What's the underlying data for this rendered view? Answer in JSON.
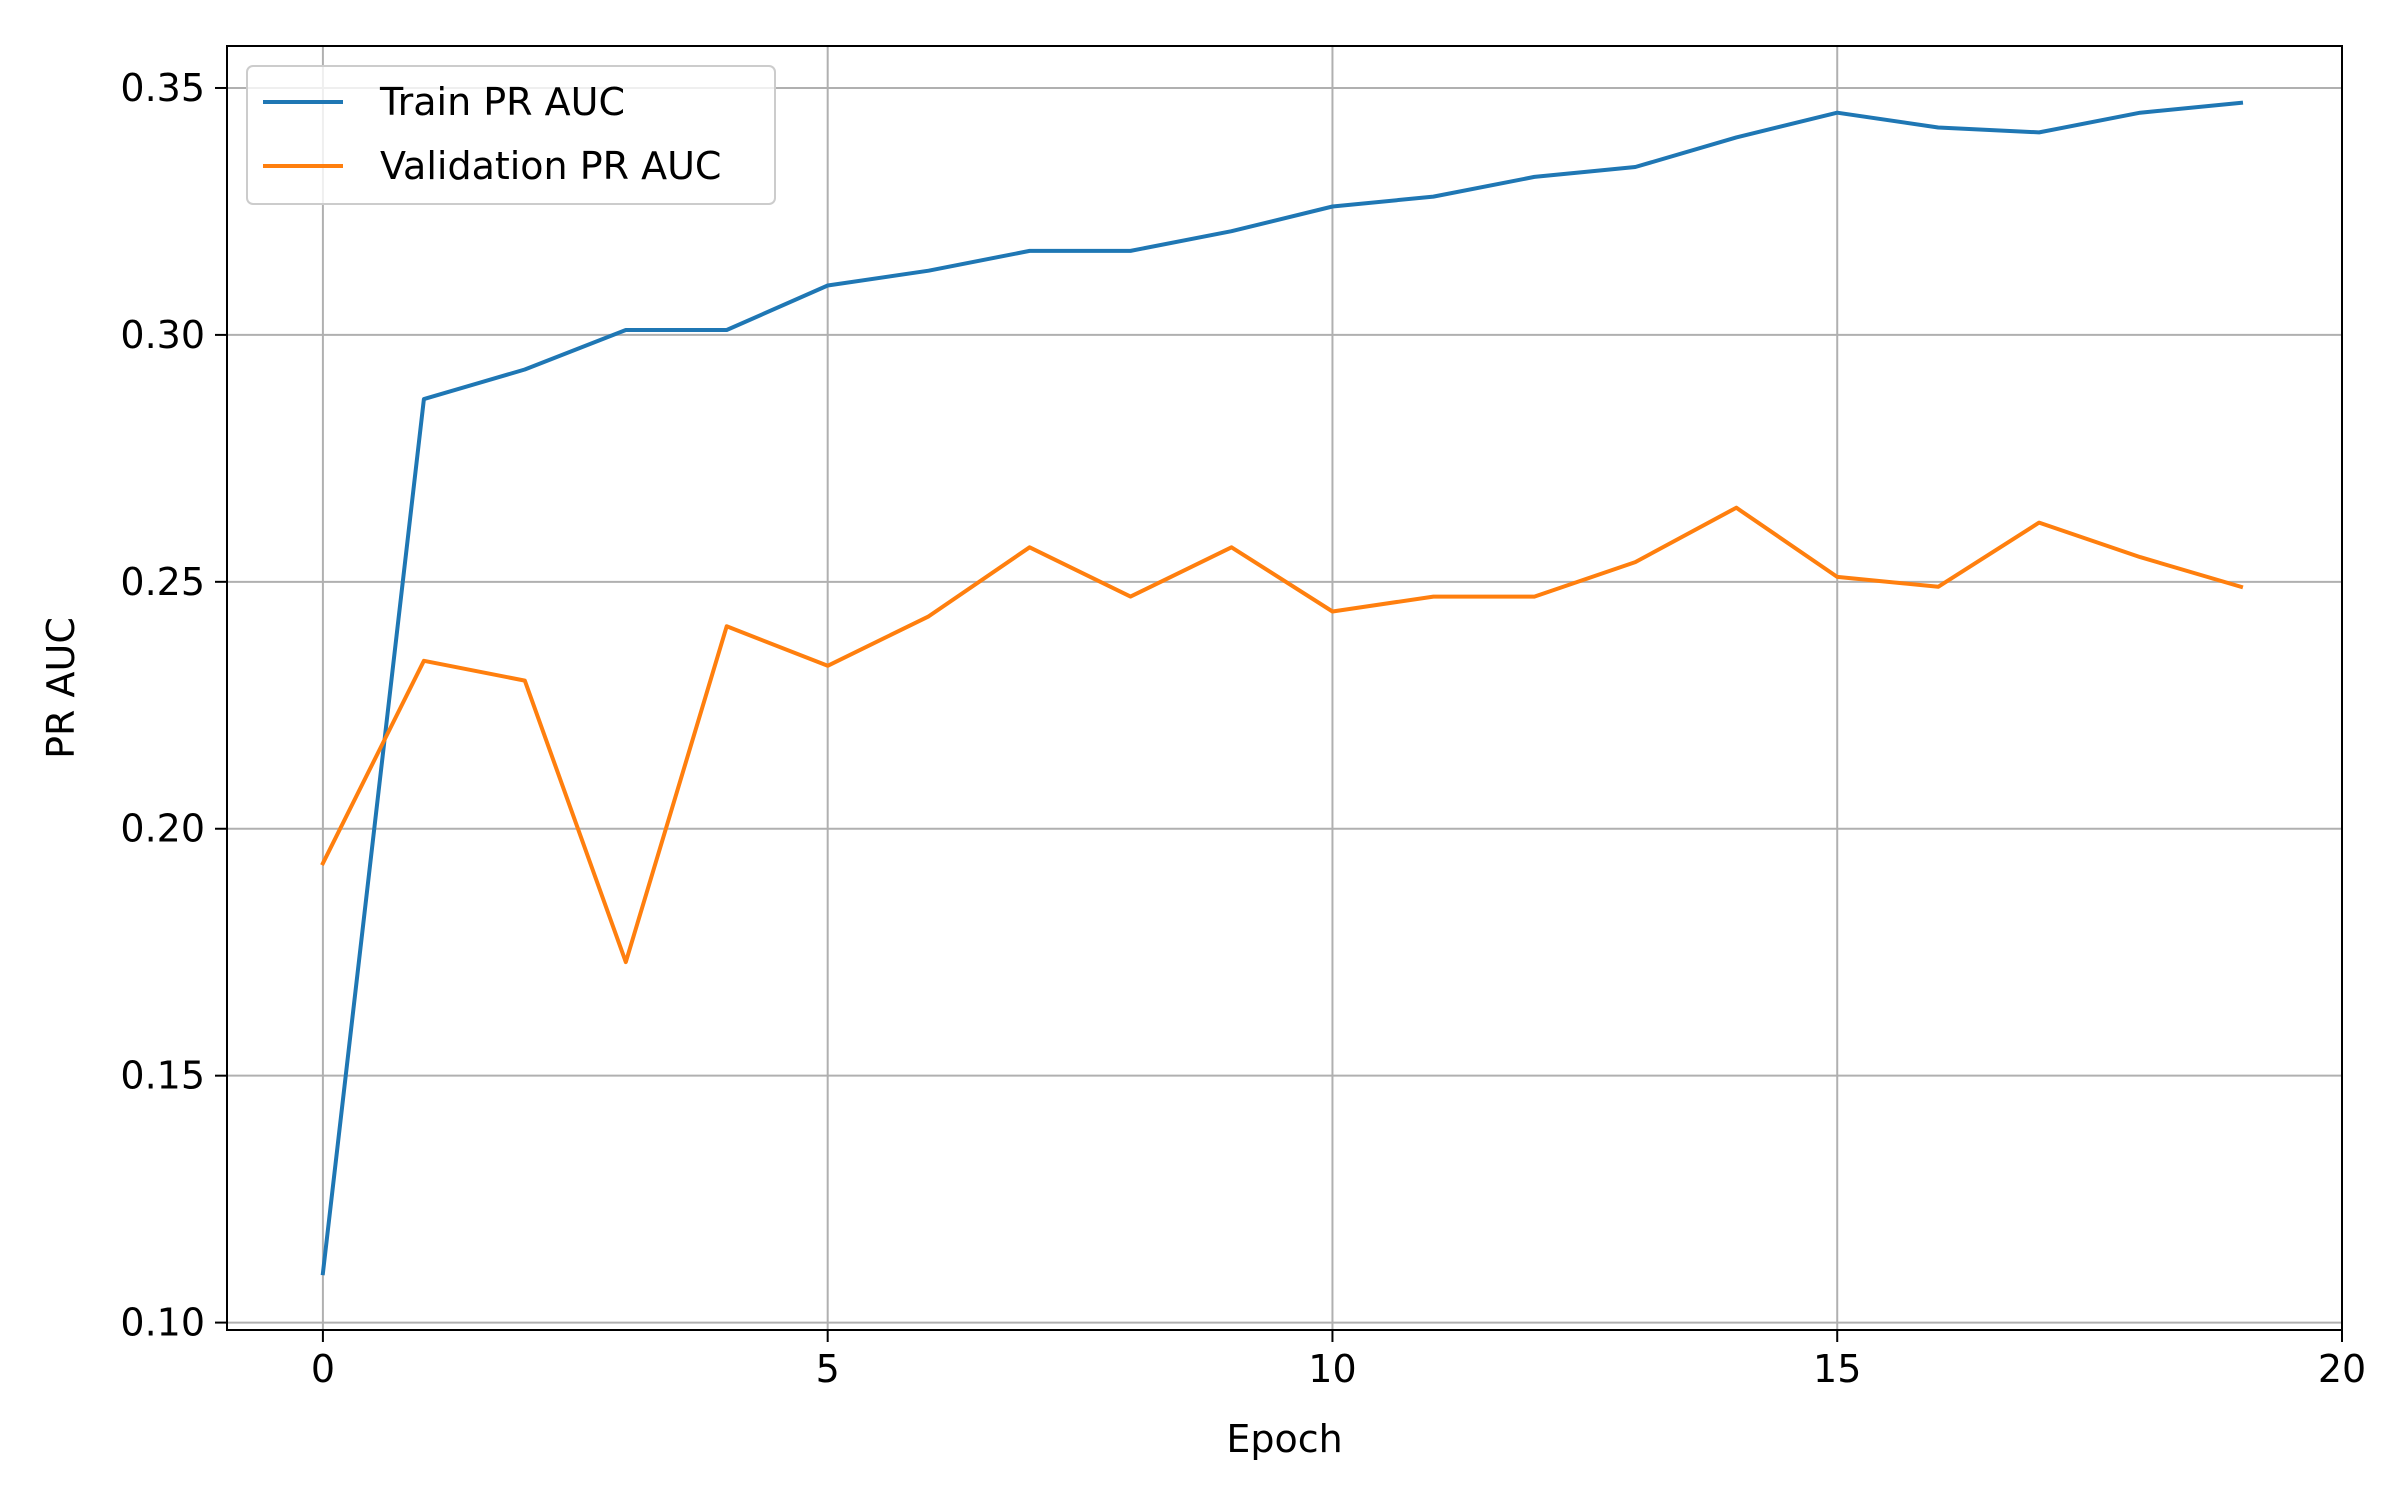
{
  "chart_data": {
    "type": "line",
    "title": "",
    "xlabel": "Epoch",
    "ylabel": "PR AUC",
    "xlim": [
      -0.95,
      20
    ],
    "ylim": [
      0.0985,
      0.3585
    ],
    "xticks": [
      0,
      5,
      10,
      15,
      20
    ],
    "xtick_labels": [
      "0",
      "5",
      "10",
      "15",
      "20"
    ],
    "yticks": [
      0.1,
      0.15,
      0.2,
      0.25,
      0.3,
      0.35
    ],
    "ytick_labels": [
      "0.10",
      "0.15",
      "0.20",
      "0.25",
      "0.30",
      "0.35"
    ],
    "grid": true,
    "legend": {
      "position": "upper-left",
      "entries": [
        "Train PR AUC",
        "Validation PR AUC"
      ]
    },
    "x": [
      0,
      1,
      2,
      3,
      4,
      5,
      6,
      7,
      8,
      9,
      10,
      11,
      12,
      13,
      14,
      15,
      16,
      17,
      18,
      19
    ],
    "series": [
      {
        "name": "Train PR AUC",
        "color": "#1f77b4",
        "values": [
          0.11,
          0.287,
          0.293,
          0.301,
          0.301,
          0.31,
          0.313,
          0.317,
          0.317,
          0.321,
          0.326,
          0.328,
          0.332,
          0.334,
          0.34,
          0.345,
          0.342,
          0.341,
          0.345,
          0.347
        ]
      },
      {
        "name": "Validation PR AUC",
        "color": "#ff7f0e",
        "values": [
          0.193,
          0.234,
          0.23,
          0.173,
          0.241,
          0.233,
          0.243,
          0.257,
          0.247,
          0.257,
          0.244,
          0.247,
          0.247,
          0.254,
          0.265,
          0.251,
          0.249,
          0.262,
          0.255,
          0.249
        ]
      }
    ]
  }
}
